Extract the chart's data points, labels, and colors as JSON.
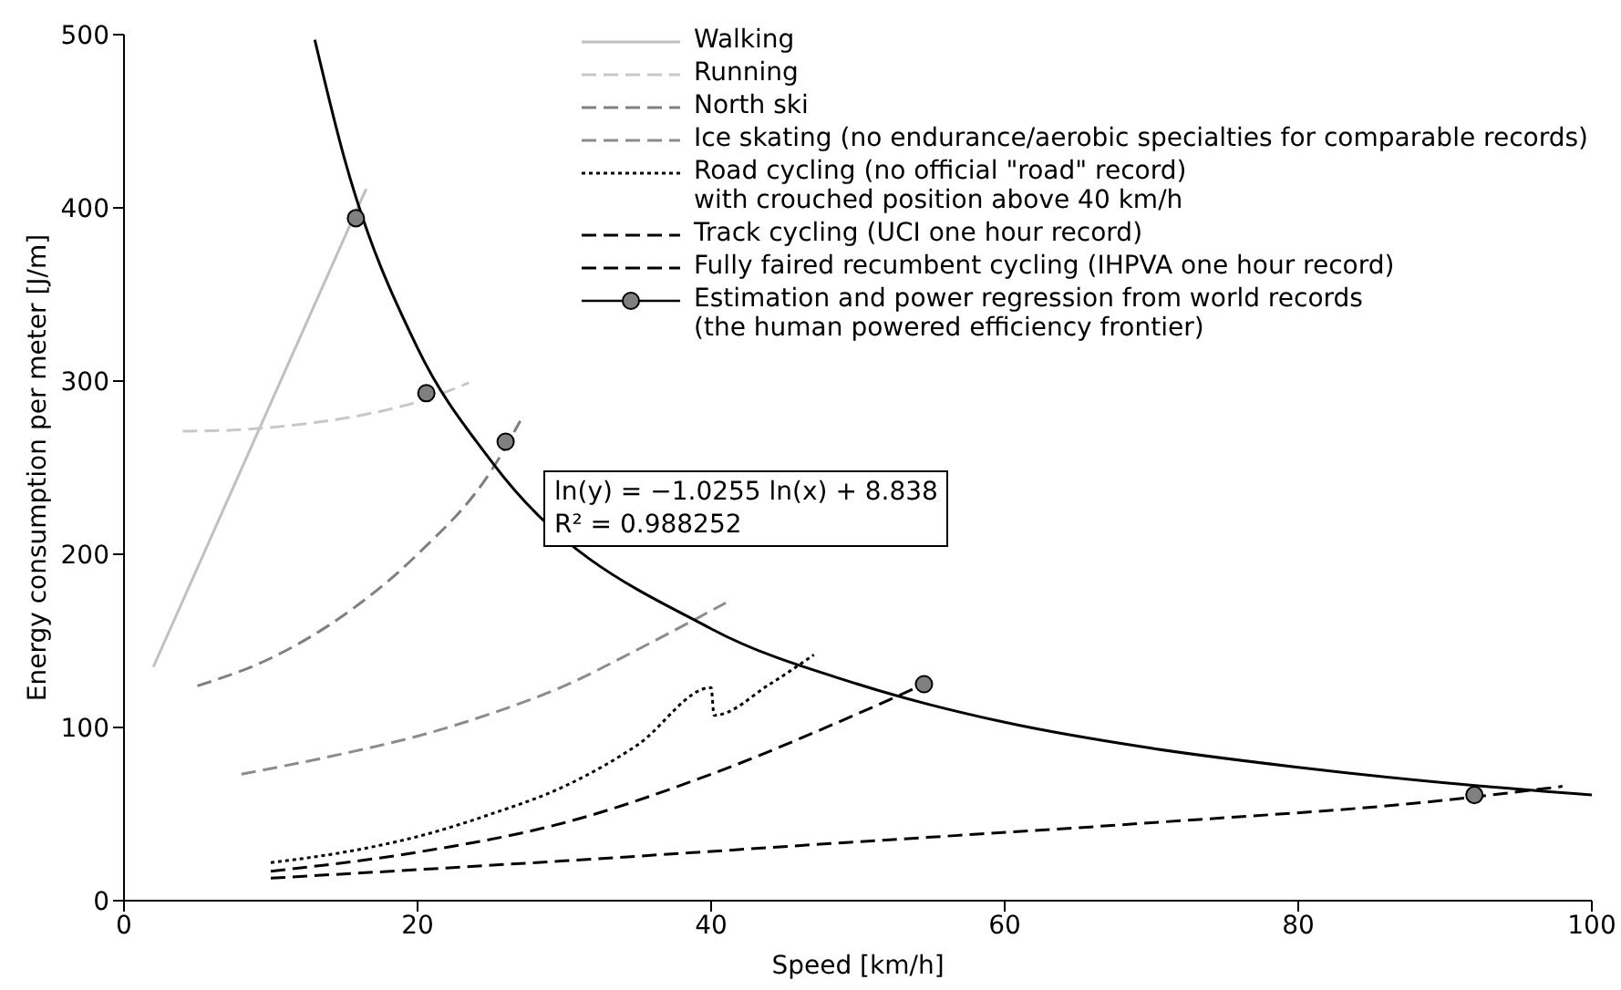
{
  "chart_data": {
    "type": "line",
    "xlabel": "Speed [km/h]",
    "ylabel": "Energy consumption per meter [J/m]",
    "xlim": [
      0,
      100
    ],
    "xticks": [
      0,
      20,
      40,
      60,
      80,
      100
    ],
    "ylim": [
      0,
      500
    ],
    "yticks": [
      0,
      100,
      200,
      300,
      400,
      500
    ],
    "grid": false,
    "legend": "top right",
    "annotations": [
      "ln(y) = −1.0255 ln(x) + 8.838",
      "R² = 0.988252"
    ],
    "series": [
      {
        "name": "Walking",
        "color": "#c0c0c0",
        "line_style": "solid",
        "x": [
          2,
          16.5
        ],
        "values": [
          135,
          411
        ]
      },
      {
        "name": "Running",
        "color": "#c8c8c8",
        "line_style": "dashed",
        "x": [
          4,
          8,
          12,
          16,
          20,
          23.5
        ],
        "values": [
          271,
          272,
          275,
          280,
          288,
          299
        ]
      },
      {
        "name": "North ski",
        "color": "#808080",
        "line_style": "dashed",
        "x": [
          5,
          10,
          15,
          20,
          25,
          27
        ],
        "values": [
          124,
          140,
          165,
          200,
          248,
          277
        ]
      },
      {
        "name": "Ice skating (no endurance/aerobic specialties for comparable records)",
        "color": "#8c8c8c",
        "line_style": "dashed",
        "x": [
          8,
          15,
          20,
          25,
          30,
          35,
          41
        ],
        "values": [
          73,
          85,
          95,
          108,
          124,
          145,
          172
        ]
      },
      {
        "name": "Road cycling (no official \"road\" record)\nwith crouched position above 40 km/h",
        "color": "#000000",
        "line_style": "dotted",
        "x": [
          10,
          15,
          20,
          25,
          30,
          35,
          40,
          40.2,
          44,
          47
        ],
        "values": [
          22,
          28,
          37,
          50,
          66,
          90,
          123,
          107,
          125,
          142
        ]
      },
      {
        "name": "Track cycling (UCI one hour record)",
        "color": "#000000",
        "line_style": "dashed",
        "x": [
          10,
          20,
          30,
          40,
          50,
          54.5
        ],
        "values": [
          17,
          28,
          45,
          73,
          108,
          125
        ]
      },
      {
        "name": "Fully faired recumbent cycling (IHPVA one hour record)",
        "color": "#000000",
        "line_style": "dashed",
        "x": [
          10,
          30,
          50,
          70,
          90,
          98
        ],
        "values": [
          13,
          23,
          34,
          45,
          58,
          66
        ]
      },
      {
        "type": "line",
        "color": "#000000",
        "line_style": "solid",
        "x": [
          13,
          15,
          20,
          25,
          40,
          50,
          60,
          70,
          80,
          90,
          100
        ],
        "values": [
          497,
          429,
          319,
          254,
          157,
          125,
          103,
          88,
          77,
          68,
          61
        ]
      },
      {
        "type": "scatter",
        "name": "Estimation and power regression from world records\n(the human powered efficiency frontier)",
        "color": "#808080",
        "marker": "circle",
        "x": [
          15.8,
          20.6,
          26,
          54.5,
          92
        ],
        "values": [
          394,
          293,
          265,
          125,
          61
        ]
      }
    ]
  }
}
